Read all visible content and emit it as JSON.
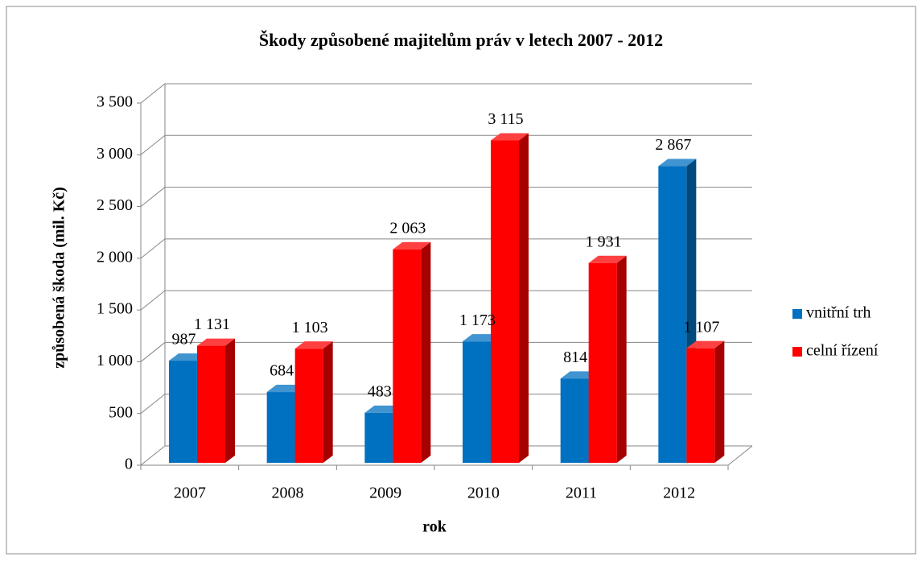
{
  "chart_data": {
    "type": "bar3d",
    "title": "Škody způsobené majitelům práv v letech 2007 - 2012",
    "x_label": "rok",
    "y_label": "způsobená škoda (mil. Kč)",
    "categories": [
      "2007",
      "2008",
      "2009",
      "2010",
      "2011",
      "2012"
    ],
    "series": [
      {
        "name": "vnitřní trh",
        "color": "#0070c0",
        "values": [
          987,
          684,
          483,
          1173,
          814,
          2867
        ],
        "value_labels": [
          "987",
          "684",
          "483",
          "1 173",
          "814",
          "2 867"
        ]
      },
      {
        "name": "celní řízení",
        "color": "#ff0000",
        "values": [
          1131,
          1103,
          2063,
          3115,
          1931,
          1107
        ],
        "value_labels": [
          "1 131",
          "1 103",
          "2 063",
          "3 115",
          "1 931",
          "1 107"
        ]
      }
    ],
    "ylim": [
      0,
      3500
    ],
    "yticks": [
      {
        "value": 0,
        "label": "0"
      },
      {
        "value": 500,
        "label": "500"
      },
      {
        "value": 1000,
        "label": "1 000"
      },
      {
        "value": 1500,
        "label": "1 500"
      },
      {
        "value": 2000,
        "label": "2 000"
      },
      {
        "value": 2500,
        "label": "2 500"
      },
      {
        "value": 3000,
        "label": "3 000"
      },
      {
        "value": 3500,
        "label": "3 500"
      }
    ],
    "grid": true,
    "legend": "right"
  }
}
